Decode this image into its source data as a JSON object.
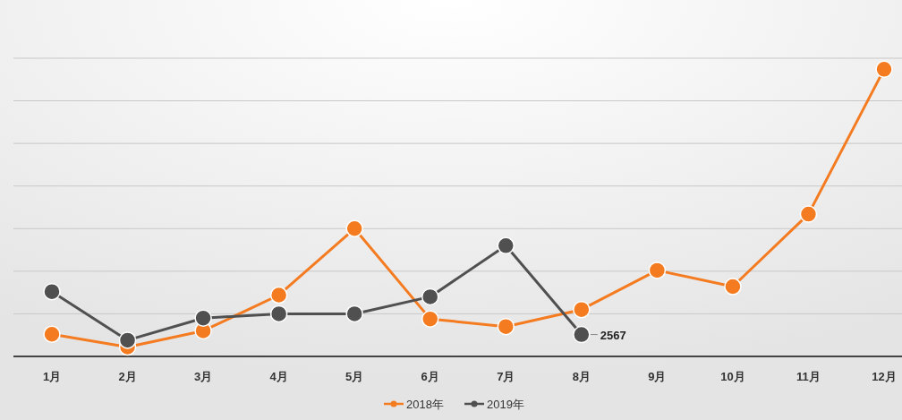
{
  "chart_data": {
    "type": "line",
    "categories": [
      "1月",
      "2月",
      "3月",
      "4月",
      "5月",
      "6月",
      "7月",
      "8月",
      "9月",
      "10月",
      "11月",
      "12月"
    ],
    "series": [
      {
        "name": "2018年",
        "color": "#f47b20",
        "values": [
          2600,
          1100,
          3000,
          7200,
          15000,
          4400,
          3500,
          5500,
          10100,
          8200,
          16700,
          33700
        ]
      },
      {
        "name": "2019年",
        "color": "#505050",
        "values": [
          7600,
          1900,
          4500,
          5000,
          5000,
          7000,
          13000,
          2567,
          null,
          null,
          null,
          null
        ],
        "value_labels": [
          null,
          null,
          null,
          null,
          null,
          null,
          null,
          "2567",
          null,
          null,
          null,
          null
        ]
      }
    ],
    "ylim": [
      0,
      35000
    ],
    "yticks": [
      {
        "value": 0,
        "label": null
      },
      {
        "value": 5000,
        "label": null
      },
      {
        "value": 10000,
        "label": null
      },
      {
        "value": 15000,
        "label": null
      },
      {
        "value": 20000,
        "label": null
      },
      {
        "value": 25000,
        "label": null
      },
      {
        "value": 30000,
        "label": null
      },
      {
        "value": 35000,
        "label": null
      }
    ],
    "grid": "y",
    "legend": "bottom",
    "marker": "circle",
    "line_style": "solid"
  }
}
